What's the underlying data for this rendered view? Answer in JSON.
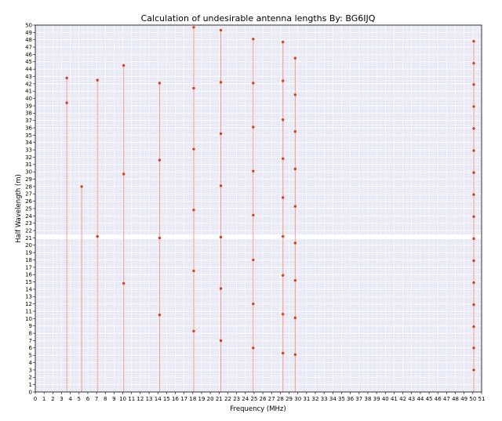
{
  "chart_data": {
    "type": "scatter",
    "title": "Calculation of undesirable antenna lengths  By: BG6IJQ",
    "xlabel": "Frequency (MHz)",
    "ylabel": "Half Wavelength (m)",
    "xlim": [
      0,
      51
    ],
    "ylim": [
      0,
      50
    ],
    "x_ticks": [
      0,
      1,
      2,
      3,
      4,
      5,
      6,
      7,
      8,
      9,
      10,
      11,
      12,
      13,
      14,
      15,
      16,
      17,
      18,
      19,
      20,
      21,
      22,
      23,
      24,
      25,
      26,
      27,
      28,
      29,
      30,
      31,
      32,
      33,
      34,
      35,
      36,
      37,
      38,
      39,
      40,
      41,
      42,
      43,
      44,
      45,
      46,
      47,
      48,
      49,
      50,
      51
    ],
    "y_ticks": [
      0,
      1,
      2,
      3,
      4,
      5,
      6,
      7,
      8,
      9,
      10,
      11,
      12,
      13,
      14,
      15,
      16,
      17,
      18,
      19,
      20,
      21,
      22,
      23,
      24,
      25,
      26,
      27,
      28,
      29,
      30,
      31,
      32,
      33,
      34,
      35,
      36,
      37,
      38,
      39,
      40,
      41,
      42,
      43,
      44,
      45,
      46,
      47,
      48,
      49,
      50
    ],
    "grid": true,
    "colors": {
      "plot_bg": "#e8e8f5",
      "grid": "#ffffff",
      "highlight_band": "#ffffff",
      "point": "#d6431a",
      "stem": "#f2a08c"
    },
    "highlight_bands": [
      [
        20.85,
        21.45
      ]
    ],
    "series": [
      {
        "x": 3.6,
        "values": [
          42.8,
          39.4
        ]
      },
      {
        "x": 5.3,
        "values": [
          28.0
        ]
      },
      {
        "x": 7.1,
        "values": [
          42.5,
          21.2
        ]
      },
      {
        "x": 10.1,
        "values": [
          44.5,
          29.7,
          14.8
        ]
      },
      {
        "x": 14.2,
        "values": [
          42.1,
          31.6,
          21.0,
          10.5
        ]
      },
      {
        "x": 18.1,
        "values": [
          49.7,
          41.4,
          33.1,
          24.8,
          16.5,
          8.3
        ]
      },
      {
        "x": 21.2,
        "values": [
          49.3,
          42.2,
          35.2,
          28.1,
          21.1,
          14.1,
          7.0
        ]
      },
      {
        "x": 24.9,
        "values": [
          48.1,
          42.1,
          36.1,
          30.1,
          24.1,
          18.0,
          12.0,
          6.0
        ]
      },
      {
        "x": 28.3,
        "values": [
          47.7,
          42.4,
          37.1,
          31.8,
          26.5,
          21.2,
          15.9,
          10.6,
          5.3
        ]
      },
      {
        "x": 29.7,
        "values": [
          45.5,
          40.5,
          35.5,
          30.4,
          25.3,
          20.3,
          15.2,
          10.1,
          5.1
        ]
      },
      {
        "x": 50.1,
        "values": [
          47.8,
          44.8,
          41.9,
          38.9,
          35.9,
          32.9,
          29.9,
          26.9,
          23.9,
          20.9,
          17.9,
          14.9,
          11.9,
          8.9,
          6.0,
          3.0
        ]
      }
    ]
  }
}
